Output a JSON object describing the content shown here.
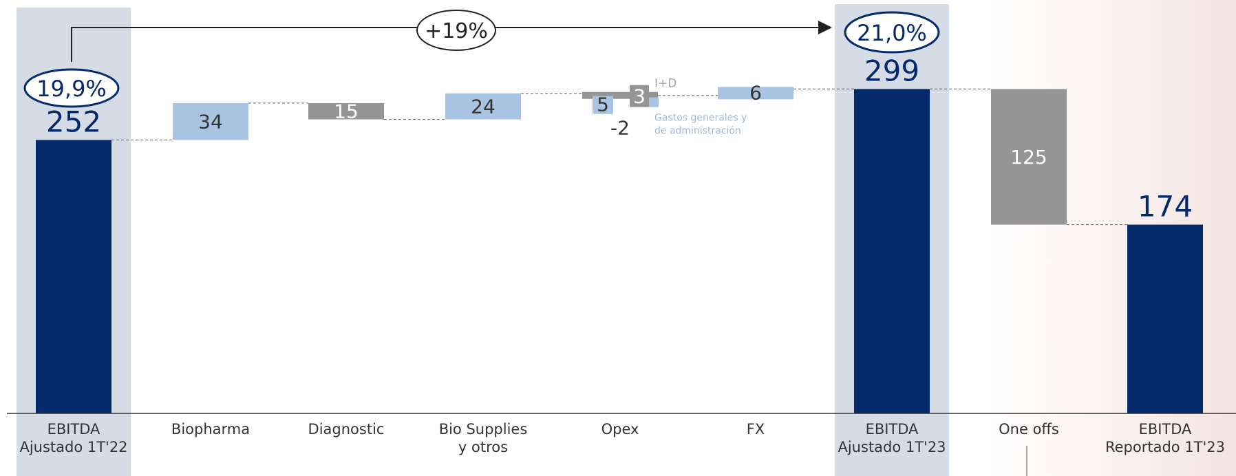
{
  "chart_data": {
    "type": "bar",
    "subtype": "waterfall",
    "categories": [
      "EBITDA\nAjustado 1T'22",
      "Biopharma",
      "Diagnostic",
      "Bio Supplies\ny otros",
      "Opex",
      "FX",
      "EBITDA\nAjustado 1T'23",
      "One offs",
      "EBITDA\nReportado 1T'23"
    ],
    "steps": [
      {
        "category": "EBITDA\nAjustado 1T'22",
        "kind": "total",
        "start": 0,
        "end": 252,
        "label": "252"
      },
      {
        "category": "Biopharma",
        "kind": "increase",
        "start": 252,
        "end": 286,
        "label": "34"
      },
      {
        "category": "Diagnostic",
        "kind": "decrease",
        "start": 286,
        "end": 271,
        "label": "15"
      },
      {
        "category": "Bio Supplies\ny otros",
        "kind": "increase",
        "start": 271,
        "end": 295,
        "label": "24"
      },
      {
        "category": "Opex",
        "kind": "increase",
        "start": 295,
        "end": 293,
        "label": "-2",
        "components": [
          {
            "name": "Gastos generales y de administración",
            "value": 5,
            "label": "5"
          },
          {
            "name": "I+D",
            "value": -3,
            "label": "3"
          }
        ]
      },
      {
        "category": "FX",
        "kind": "increase",
        "start": 293,
        "end": 299,
        "label": "6"
      },
      {
        "category": "EBITDA\nAjustado 1T'23",
        "kind": "total",
        "start": 0,
        "end": 299,
        "label": "299"
      },
      {
        "category": "One offs",
        "kind": "decrease",
        "start": 299,
        "end": 174,
        "label": "125"
      },
      {
        "category": "EBITDA\nReportado 1T'23",
        "kind": "total",
        "start": 0,
        "end": 174,
        "label": "174"
      }
    ],
    "annotations": {
      "margin_start": "19,9%",
      "margin_end": "21,0%",
      "growth": "+19%",
      "opex_labels": {
        "rd": "I+D",
        "ga": "Gastos generales y\nde administración"
      }
    },
    "ylim": [
      0,
      350
    ],
    "colors": {
      "total": "#042a6c",
      "increase": "#a9c3e3",
      "decrease": "#959595",
      "highlight": "#d6dce6",
      "text_dark": "#333333",
      "text_light": "#ffffff",
      "rd_label": "#a6a6a6",
      "ga_label": "#9cb8da"
    }
  }
}
